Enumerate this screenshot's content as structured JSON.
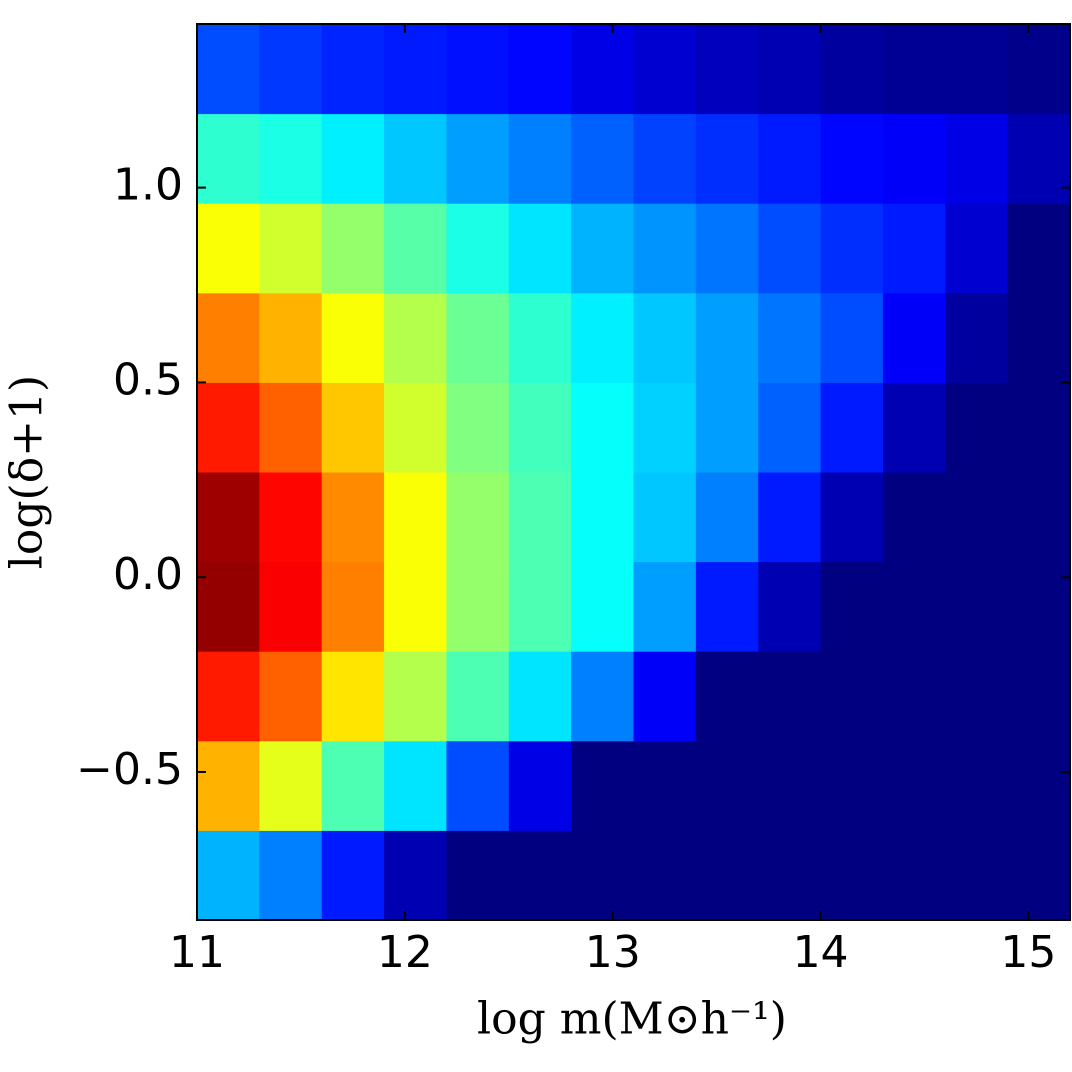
{
  "chart_data": {
    "type": "heatmap",
    "colormap": "jet",
    "x_label": "log m(M⊙h⁻¹)",
    "y_label": "log(δ+1)",
    "xlim": [
      11,
      15.2
    ],
    "ylim": [
      -0.88,
      1.42
    ],
    "xticks": [
      11,
      12,
      13,
      14,
      15
    ],
    "yticks": [
      {
        "value": -0.5,
        "label": "−0.5"
      },
      {
        "value": 0,
        "label": "0.0"
      },
      0.5,
      {
        "value": 1,
        "label": "1.0"
      }
    ],
    "x_edges": [
      11,
      11.3,
      11.6,
      11.9,
      12.2,
      12.5,
      12.8,
      13.1,
      13.4,
      13.7,
      14,
      14.3,
      14.6,
      14.9,
      15.2
    ],
    "y_edges": [
      -0.88,
      -0.65,
      -0.42,
      -0.19,
      0.04,
      0.27,
      0.5,
      0.73,
      0.96,
      1.19,
      1.42
    ],
    "z": [
      [
        0.3,
        0.25,
        0.15,
        0.05,
        0,
        0,
        0,
        0,
        0,
        0,
        0,
        0,
        0,
        0
      ],
      [
        0.7,
        0.6,
        0.45,
        0.35,
        0.2,
        0.1,
        0,
        0,
        0,
        0,
        0,
        0,
        0,
        0
      ],
      [
        0.85,
        0.78,
        0.65,
        0.55,
        0.45,
        0.35,
        0.25,
        0.12,
        0,
        0,
        0,
        0,
        0,
        0
      ],
      [
        0.98,
        0.88,
        0.75,
        0.62,
        0.52,
        0.45,
        0.38,
        0.28,
        0.15,
        0.05,
        0,
        0,
        0,
        0
      ],
      [
        0.97,
        0.87,
        0.74,
        0.62,
        0.52,
        0.45,
        0.38,
        0.32,
        0.25,
        0.15,
        0.05,
        0,
        0,
        0
      ],
      [
        0.85,
        0.78,
        0.68,
        0.58,
        0.5,
        0.44,
        0.38,
        0.33,
        0.28,
        0.22,
        0.15,
        0.05,
        0,
        0
      ],
      [
        0.75,
        0.7,
        0.62,
        0.55,
        0.48,
        0.42,
        0.36,
        0.32,
        0.28,
        0.24,
        0.2,
        0.12,
        0.03,
        0
      ],
      [
        0.62,
        0.58,
        0.52,
        0.46,
        0.4,
        0.35,
        0.3,
        0.27,
        0.24,
        0.2,
        0.17,
        0.15,
        0.08,
        0
      ],
      [
        0.42,
        0.4,
        0.36,
        0.32,
        0.28,
        0.25,
        0.22,
        0.19,
        0.17,
        0.15,
        0.13,
        0.12,
        0.1,
        0.05
      ],
      [
        0.2,
        0.18,
        0.16,
        0.15,
        0.14,
        0.13,
        0.1,
        0.08,
        0.06,
        0.05,
        0.03,
        0.02,
        0.02,
        0.01
      ]
    ]
  }
}
